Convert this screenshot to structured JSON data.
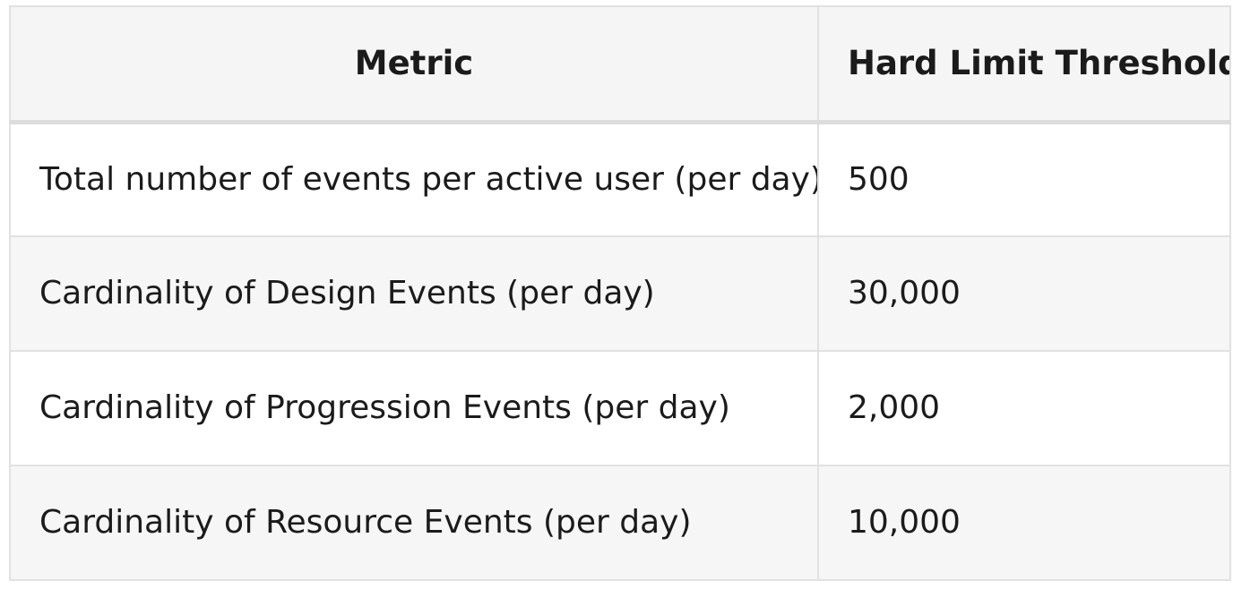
{
  "table": {
    "headers": [
      "Metric",
      "Hard Limit Threshold"
    ],
    "rows": [
      {
        "metric": "Total number of events per active user (per day)",
        "threshold": "500"
      },
      {
        "metric": "Cardinality of Design Events (per day)",
        "threshold": "30,000"
      },
      {
        "metric": "Cardinality of Progression Events (per day)",
        "threshold": "2,000"
      },
      {
        "metric": "Cardinality of Resource Events (per day)",
        "threshold": "10,000"
      }
    ]
  }
}
